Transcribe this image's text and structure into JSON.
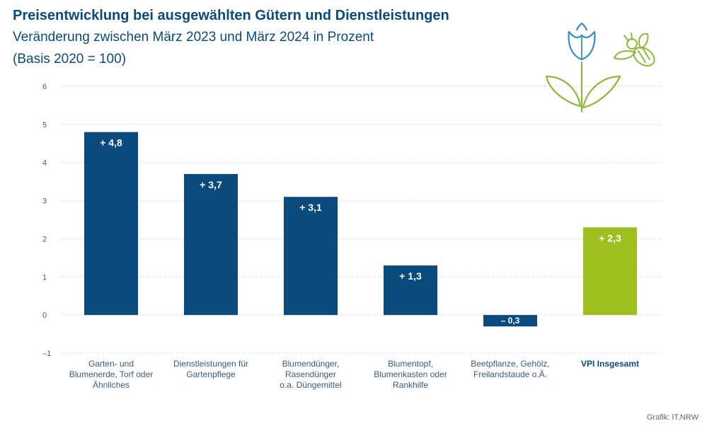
{
  "header": {
    "title": "Preisentwicklung bei ausgewählten Gütern und Dienstleistungen",
    "subtitle_line1": "Veränderung zwischen März 2023 und März 2024 in Prozent",
    "subtitle_line2": "(Basis 2020 = 100)"
  },
  "footer": {
    "credit": "Grafik: IT.NRW"
  },
  "decoration": {
    "icons": [
      "tulip-icon",
      "bee-icon"
    ]
  },
  "colors": {
    "bar": "#0b4a7d",
    "highlight": "#9fbf1e",
    "illustration": "#8db83a",
    "illustration_blue": "#2f8ecb"
  },
  "chart_data": {
    "type": "bar",
    "ylim": [
      -1,
      6
    ],
    "yticks": [
      "6",
      "5",
      "4",
      "3",
      "2",
      "1",
      "0",
      "–1"
    ],
    "grid": true,
    "categories": [
      [
        "Garten- und",
        "Blumenerde, Torf oder",
        "Ähnliches"
      ],
      [
        "Dienstleistungen für",
        "Gartenpflege"
      ],
      [
        "Blumendünger,",
        "Rasendünger",
        "o.a. Düngemittel"
      ],
      [
        "Blumentopf,",
        "Blumenkasten oder",
        "Rankhilfe"
      ],
      [
        "Beetpflanze, Gehölz,",
        "Freilandstaude o.Ä."
      ],
      [
        "VPI Insgesamt"
      ]
    ],
    "values": [
      4.8,
      3.7,
      3.1,
      1.3,
      -0.3,
      2.3
    ],
    "value_labels": [
      "+ 4,8",
      "+ 3,7",
      "+ 3,1",
      "+ 1,3",
      "– 0,3",
      "+ 2,3"
    ],
    "highlight_index": 5
  }
}
